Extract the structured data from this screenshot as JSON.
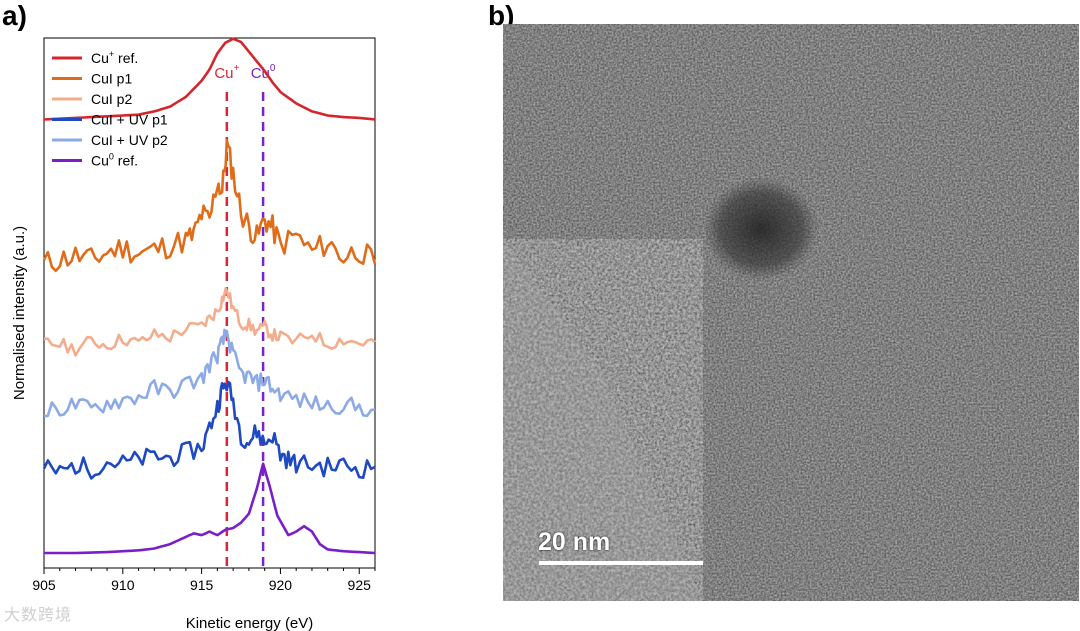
{
  "panels": {
    "a_label": "a)",
    "b_label": "b)"
  },
  "chart_data": {
    "type": "line",
    "xlabel": "Kinetic energy (eV)",
    "ylabel": "Normalised intensity (a.u.)",
    "xlim": [
      905,
      926
    ],
    "xticks": [
      905,
      910,
      915,
      920,
      925
    ],
    "y_ticks_shown": false,
    "grid": false,
    "legend_placement": "top-left",
    "reference_lines": [
      {
        "label": "Cu+",
        "x": 916.6,
        "color": "#d6263a",
        "style": "dashed"
      },
      {
        "label": "Cu0",
        "x": 918.9,
        "color": "#7b22c9",
        "style": "dashed"
      }
    ],
    "series": [
      {
        "name": "Cu+ ref.",
        "color": "#d4262c",
        "offset": 5.1,
        "amp": 0.95,
        "x": [
          905,
          907,
          909,
          911,
          912,
          913,
          914,
          915,
          915.5,
          916,
          916.5,
          917,
          917.5,
          918,
          918.5,
          919,
          919.5,
          920,
          921,
          922,
          923,
          924,
          925,
          926
        ],
        "y": [
          0.0,
          0.02,
          0.04,
          0.06,
          0.1,
          0.16,
          0.28,
          0.48,
          0.62,
          0.82,
          0.95,
          1.0,
          0.96,
          0.84,
          0.72,
          0.6,
          0.46,
          0.34,
          0.2,
          0.1,
          0.05,
          0.03,
          0.02,
          0.0
        ]
      },
      {
        "name": "CuI p1",
        "color": "#e06c1a",
        "offset": 3.4,
        "amp": 1.4,
        "x": [
          905,
          906,
          907,
          908,
          909,
          910,
          911,
          912,
          913,
          914,
          914.5,
          915,
          915.5,
          916,
          916.3,
          916.6,
          917,
          917.5,
          918,
          918.5,
          919,
          919.5,
          920,
          921,
          922,
          923,
          924,
          925,
          926
        ],
        "y": [
          0.0,
          0.04,
          0.07,
          0.03,
          0.1,
          0.14,
          0.09,
          0.12,
          0.16,
          0.2,
          0.24,
          0.42,
          0.36,
          0.7,
          0.6,
          1.0,
          0.76,
          0.44,
          0.32,
          0.22,
          0.38,
          0.3,
          0.16,
          0.24,
          0.1,
          0.18,
          0.06,
          0.12,
          0.0
        ]
      },
      {
        "name": "CuI p2",
        "color": "#f3ad8c",
        "offset": 2.4,
        "amp": 0.7,
        "x": [
          905,
          906,
          907,
          908,
          909,
          910,
          911,
          912,
          913,
          914,
          915,
          915.5,
          916,
          916.3,
          916.6,
          917,
          917.5,
          918,
          918.5,
          919,
          919.5,
          920,
          921,
          922,
          923,
          924,
          925,
          926
        ],
        "y": [
          0.1,
          0.08,
          0.0,
          0.14,
          0.06,
          0.18,
          0.1,
          0.24,
          0.2,
          0.34,
          0.38,
          0.52,
          0.64,
          0.84,
          1.0,
          0.68,
          0.44,
          0.4,
          0.3,
          0.36,
          0.24,
          0.2,
          0.12,
          0.26,
          0.08,
          0.16,
          0.1,
          0.12
        ]
      },
      {
        "name": "CuI + UV p1",
        "color": "#1f49c1",
        "offset": 0.95,
        "amp": 1.05,
        "x": [
          905,
          906,
          907,
          908,
          909,
          910,
          911,
          912,
          913,
          914,
          915,
          915.5,
          916,
          916.3,
          916.6,
          917,
          917.5,
          918,
          918.5,
          919,
          919.5,
          920,
          920.5,
          921,
          922,
          923,
          924,
          925,
          926
        ],
        "y": [
          0.05,
          0.0,
          0.08,
          0.04,
          0.12,
          0.1,
          0.14,
          0.18,
          0.16,
          0.22,
          0.28,
          0.5,
          0.74,
          0.92,
          1.0,
          0.8,
          0.42,
          0.34,
          0.46,
          0.32,
          0.42,
          0.2,
          0.14,
          0.1,
          0.08,
          0.06,
          0.08,
          0.04,
          0.06
        ]
      },
      {
        "name": "CuI + UV p2",
        "color": "#8eaae6",
        "offset": 1.65,
        "amp": 0.95,
        "x": [
          905,
          906,
          907,
          908,
          909,
          910,
          911,
          912,
          913,
          914,
          915,
          915.5,
          916,
          916.3,
          916.6,
          917,
          917.5,
          918,
          918.5,
          919,
          919.5,
          920,
          921,
          922,
          923,
          924,
          925,
          926
        ],
        "y": [
          0.0,
          0.05,
          0.1,
          0.04,
          0.12,
          0.16,
          0.2,
          0.3,
          0.26,
          0.36,
          0.42,
          0.6,
          0.72,
          0.86,
          1.0,
          0.7,
          0.48,
          0.44,
          0.36,
          0.42,
          0.3,
          0.24,
          0.16,
          0.12,
          0.08,
          0.1,
          0.06,
          0.04
        ]
      },
      {
        "name": "Cu0 ref.",
        "color": "#7a1ec9",
        "offset": 0.0,
        "amp": 1.05,
        "x": [
          905,
          907,
          909,
          911,
          912,
          913,
          914,
          914.5,
          915,
          915.5,
          916,
          916.5,
          917,
          917.5,
          918,
          918.5,
          918.9,
          919.3,
          919.8,
          920.5,
          921,
          921.5,
          922,
          922.5,
          923,
          924,
          925,
          926
        ],
        "y": [
          0.0,
          0.0,
          0.01,
          0.03,
          0.05,
          0.1,
          0.18,
          0.22,
          0.2,
          0.24,
          0.2,
          0.26,
          0.28,
          0.34,
          0.44,
          0.72,
          1.0,
          0.76,
          0.42,
          0.2,
          0.24,
          0.3,
          0.24,
          0.1,
          0.04,
          0.02,
          0.01,
          0.0
        ]
      }
    ]
  },
  "legend_items": [
    {
      "text": "Cu",
      "sup": "+",
      "suffix": " ref."
    },
    {
      "text": "CuI p1",
      "sup": "",
      "suffix": ""
    },
    {
      "text": "CuI p2",
      "sup": "",
      "suffix": ""
    },
    {
      "text": "CuI + UV p1",
      "sup": "",
      "suffix": ""
    },
    {
      "text": "CuI + UV p2",
      "sup": "",
      "suffix": ""
    },
    {
      "text": "Cu",
      "sup": "0",
      "suffix": " ref."
    }
  ],
  "annotations": {
    "cu_plus": {
      "base": "Cu",
      "sup": "+"
    },
    "cu_zero": {
      "base": "Cu",
      "sup": "0"
    }
  },
  "micrograph": {
    "scale_bar_label": "20 nm"
  },
  "watermark": "大数跨境"
}
